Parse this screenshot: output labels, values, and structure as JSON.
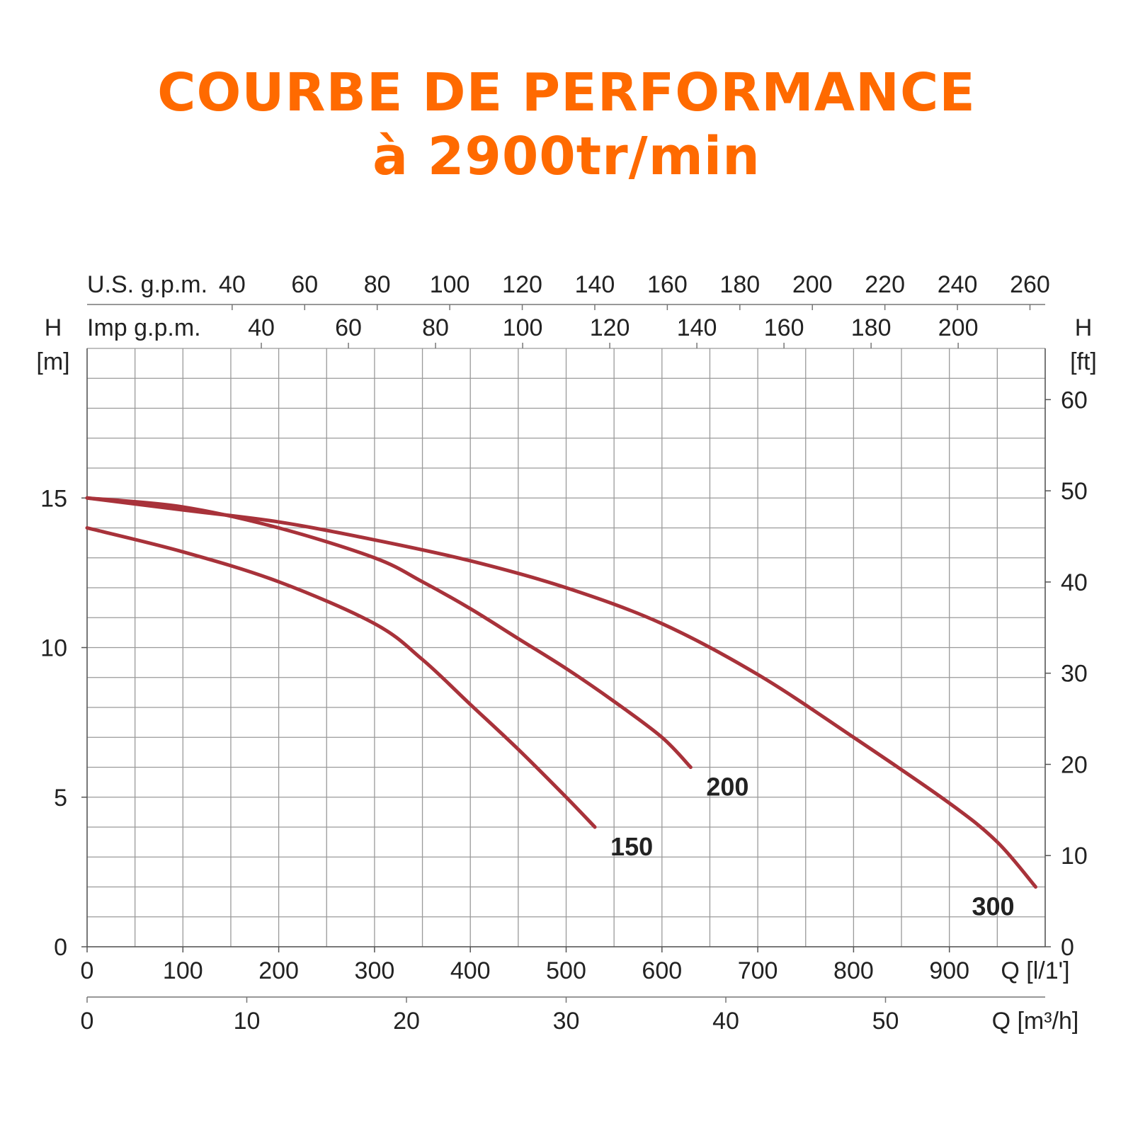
{
  "title_line1": "COURBE DE PERFORMANCE",
  "title_line2": "à 2900tr/min",
  "colors": {
    "title": "#ff6a00",
    "curve": "#a8323a",
    "grid": "#9a9a9a"
  },
  "chart_data": {
    "type": "line",
    "grid": true,
    "axes": {
      "x_lmin": {
        "label": "Q [l/1']",
        "range": [
          0,
          1000
        ],
        "ticks": [
          0,
          100,
          200,
          300,
          400,
          500,
          600,
          700,
          800,
          900
        ]
      },
      "x_m3h": {
        "label": "Q [m³/h]",
        "ticks": [
          0,
          10,
          20,
          30,
          40,
          50
        ]
      },
      "x_usgpm": {
        "label": "U.S. g.p.m.",
        "ticks": [
          40,
          60,
          80,
          100,
          120,
          140,
          160,
          180,
          200,
          220,
          240,
          260
        ]
      },
      "x_impgpm": {
        "label": "Imp g.p.m.",
        "ticks": [
          40,
          60,
          80,
          100,
          120,
          140,
          160,
          180,
          200
        ]
      },
      "y_m": {
        "label_top": "H",
        "label_unit": "[m]",
        "range": [
          0,
          20
        ],
        "ticks": [
          0,
          5,
          10,
          15
        ]
      },
      "y_ft": {
        "label_top": "H",
        "label_unit": "[ft]",
        "ticks": [
          0,
          10,
          20,
          30,
          40,
          50,
          60
        ]
      }
    },
    "series": [
      {
        "name": "150",
        "points": [
          [
            0,
            14
          ],
          [
            100,
            13.2
          ],
          [
            200,
            12.2
          ],
          [
            300,
            10.8
          ],
          [
            350,
            9.6
          ],
          [
            400,
            8.1
          ],
          [
            450,
            6.6
          ],
          [
            500,
            5.0
          ],
          [
            530,
            4.0
          ]
        ]
      },
      {
        "name": "200",
        "points": [
          [
            0,
            15
          ],
          [
            100,
            14.7
          ],
          [
            200,
            14.0
          ],
          [
            300,
            13.0
          ],
          [
            350,
            12.2
          ],
          [
            400,
            11.3
          ],
          [
            450,
            10.3
          ],
          [
            500,
            9.3
          ],
          [
            550,
            8.2
          ],
          [
            600,
            7.0
          ],
          [
            630,
            6.0
          ]
        ]
      },
      {
        "name": "300",
        "points": [
          [
            0,
            15
          ],
          [
            100,
            14.6
          ],
          [
            200,
            14.2
          ],
          [
            300,
            13.6
          ],
          [
            400,
            12.9
          ],
          [
            500,
            12.0
          ],
          [
            600,
            10.8
          ],
          [
            700,
            9.1
          ],
          [
            800,
            7.0
          ],
          [
            900,
            4.8
          ],
          [
            950,
            3.5
          ],
          [
            990,
            2.0
          ]
        ]
      }
    ]
  }
}
